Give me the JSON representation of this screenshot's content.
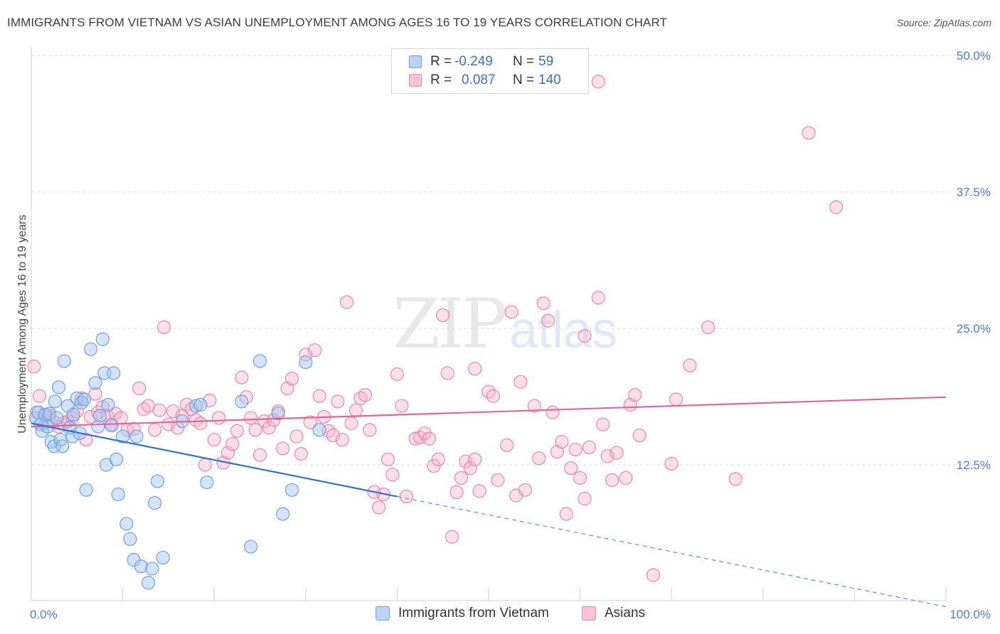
{
  "header": {
    "title": "IMMIGRANTS FROM VIETNAM VS ASIAN UNEMPLOYMENT AMONG AGES 16 TO 19 YEARS CORRELATION CHART",
    "source": "Source: ZipAtlas.com"
  },
  "watermark": {
    "zip": "ZIP",
    "atlas": "atlas"
  },
  "legend": {
    "r_label": "R =",
    "n_label": "N =",
    "series": [
      {
        "name": "Immigrants from Vietnam",
        "r": "-0.249",
        "n": "59",
        "color": "#6ea0e6",
        "fill": "#bcd3f5"
      },
      {
        "name": "Asians",
        "r": "0.087",
        "n": "140",
        "color": "#e986a8",
        "fill": "#f6c4d4"
      }
    ]
  },
  "chart_data": {
    "type": "scatter",
    "title": "IMMIGRANTS FROM VIETNAM VS ASIAN UNEMPLOYMENT AMONG AGES 16 TO 19 YEARS CORRELATION CHART",
    "xlabel": "",
    "ylabel": "Unemployment Among Ages 16 to 19 years",
    "xlim": [
      0,
      100
    ],
    "ylim": [
      0,
      50
    ],
    "x_tick_labels": [
      "0.0%",
      "100.0%"
    ],
    "y_ticks": [
      12.5,
      25.0,
      37.5,
      50.0
    ],
    "y_tick_labels": [
      "12.5%",
      "25.0%",
      "37.5%",
      "50.0%"
    ],
    "grid": "horizontal dashed",
    "series": [
      {
        "name": "Immigrants from Vietnam",
        "color": "#6ea0e6",
        "trend": {
          "x0": 0,
          "y0": 16.3,
          "x1": 40,
          "y1": 9.6,
          "dashed_to_x": 100,
          "dashed_to_y": -0.5
        },
        "points": [
          [
            0.5,
            16.8
          ],
          [
            0.8,
            17.3
          ],
          [
            1.0,
            16.2
          ],
          [
            1.2,
            15.6
          ],
          [
            1.5,
            17.1
          ],
          [
            1.8,
            16.0
          ],
          [
            2.0,
            17.2
          ],
          [
            2.2,
            14.6
          ],
          [
            2.5,
            14.2
          ],
          [
            2.6,
            18.3
          ],
          [
            2.8,
            16.8
          ],
          [
            3.0,
            19.6
          ],
          [
            3.2,
            14.8
          ],
          [
            3.4,
            14.2
          ],
          [
            3.6,
            22.0
          ],
          [
            4.0,
            17.9
          ],
          [
            4.2,
            15.9
          ],
          [
            4.5,
            15.1
          ],
          [
            4.6,
            17.1
          ],
          [
            5.0,
            18.6
          ],
          [
            5.3,
            15.4
          ],
          [
            5.5,
            18.2
          ],
          [
            5.8,
            18.5
          ],
          [
            6.0,
            10.2
          ],
          [
            6.5,
            23.1
          ],
          [
            7.0,
            20.0
          ],
          [
            7.3,
            16.0
          ],
          [
            7.5,
            17.0
          ],
          [
            7.8,
            24.0
          ],
          [
            8.0,
            20.9
          ],
          [
            8.2,
            12.5
          ],
          [
            8.4,
            18.0
          ],
          [
            8.8,
            16.1
          ],
          [
            9.0,
            20.9
          ],
          [
            9.3,
            13.0
          ],
          [
            9.5,
            9.8
          ],
          [
            10.0,
            15.1
          ],
          [
            10.4,
            7.1
          ],
          [
            10.8,
            5.7
          ],
          [
            11.2,
            3.8
          ],
          [
            11.5,
            15.1
          ],
          [
            12.0,
            3.2
          ],
          [
            12.8,
            1.7
          ],
          [
            13.2,
            3.0
          ],
          [
            13.5,
            9.0
          ],
          [
            13.8,
            11.0
          ],
          [
            14.4,
            4.0
          ],
          [
            16.5,
            16.5
          ],
          [
            18.0,
            17.9
          ],
          [
            18.5,
            18.0
          ],
          [
            19.2,
            10.9
          ],
          [
            23.0,
            18.3
          ],
          [
            24.0,
            5.0
          ],
          [
            25.0,
            22.0
          ],
          [
            27.0,
            17.2
          ],
          [
            27.5,
            8.0
          ],
          [
            28.5,
            10.2
          ],
          [
            30.0,
            21.9
          ],
          [
            31.5,
            15.7
          ]
        ]
      },
      {
        "name": "Asians",
        "color": "#e986a8",
        "trend": {
          "x0": 0,
          "y0": 16.0,
          "x1": 100,
          "y1": 18.7
        },
        "points": [
          [
            0.3,
            21.5
          ],
          [
            0.6,
            17.3
          ],
          [
            0.9,
            18.8
          ],
          [
            1.2,
            16.3
          ],
          [
            1.6,
            17.1
          ],
          [
            2.0,
            17.0
          ],
          [
            2.4,
            16.5
          ],
          [
            3.0,
            16.0
          ],
          [
            3.5,
            16.3
          ],
          [
            4.0,
            16.5
          ],
          [
            4.5,
            16.8
          ],
          [
            5.0,
            17.4
          ],
          [
            5.5,
            18.6
          ],
          [
            6.0,
            14.8
          ],
          [
            6.5,
            16.9
          ],
          [
            7.0,
            19.0
          ],
          [
            7.3,
            17.3
          ],
          [
            7.8,
            17.8
          ],
          [
            8.3,
            17.0
          ],
          [
            8.7,
            16.2
          ],
          [
            9.2,
            17.2
          ],
          [
            9.8,
            16.8
          ],
          [
            10.5,
            15.7
          ],
          [
            11.2,
            15.8
          ],
          [
            11.8,
            19.5
          ],
          [
            12.3,
            17.6
          ],
          [
            12.8,
            17.9
          ],
          [
            13.5,
            15.7
          ],
          [
            14.0,
            17.5
          ],
          [
            14.5,
            25.1
          ],
          [
            15.0,
            16.2
          ],
          [
            15.5,
            17.4
          ],
          [
            16.0,
            15.9
          ],
          [
            16.5,
            17.0
          ],
          [
            17.0,
            18.0
          ],
          [
            17.5,
            17.6
          ],
          [
            18.0,
            16.6
          ],
          [
            18.5,
            16.3
          ],
          [
            19.0,
            12.5
          ],
          [
            19.5,
            18.4
          ],
          [
            20.0,
            14.8
          ],
          [
            20.5,
            16.8
          ],
          [
            21.0,
            12.7
          ],
          [
            21.5,
            13.6
          ],
          [
            22.0,
            14.4
          ],
          [
            22.5,
            15.6
          ],
          [
            23.0,
            20.5
          ],
          [
            23.5,
            18.7
          ],
          [
            24.0,
            16.8
          ],
          [
            24.5,
            15.7
          ],
          [
            25.0,
            13.4
          ],
          [
            25.5,
            16.5
          ],
          [
            26.0,
            15.9
          ],
          [
            26.5,
            16.6
          ],
          [
            27.0,
            17.4
          ],
          [
            27.5,
            14.0
          ],
          [
            28.0,
            19.5
          ],
          [
            28.5,
            20.4
          ],
          [
            29.0,
            15.1
          ],
          [
            29.5,
            13.5
          ],
          [
            30.0,
            22.6
          ],
          [
            30.5,
            16.4
          ],
          [
            31.0,
            23.0
          ],
          [
            31.5,
            18.8
          ],
          [
            32.0,
            16.9
          ],
          [
            32.5,
            15.6
          ],
          [
            33.0,
            15.2
          ],
          [
            33.5,
            18.3
          ],
          [
            34.0,
            14.8
          ],
          [
            34.5,
            27.4
          ],
          [
            35.0,
            16.3
          ],
          [
            35.5,
            17.5
          ],
          [
            36.0,
            18.6
          ],
          [
            36.5,
            18.9
          ],
          [
            37.0,
            15.7
          ],
          [
            37.5,
            10.0
          ],
          [
            38.0,
            8.6
          ],
          [
            38.5,
            9.8
          ],
          [
            39.0,
            13.0
          ],
          [
            39.5,
            11.6
          ],
          [
            40.0,
            20.8
          ],
          [
            40.5,
            17.9
          ],
          [
            41.0,
            9.6
          ],
          [
            42.0,
            14.9
          ],
          [
            42.5,
            15.0
          ],
          [
            43.0,
            15.4
          ],
          [
            43.5,
            14.9
          ],
          [
            44.0,
            12.4
          ],
          [
            44.5,
            13.0
          ],
          [
            45.0,
            26.2
          ],
          [
            45.5,
            20.9
          ],
          [
            46.0,
            5.9
          ],
          [
            46.5,
            10.0
          ],
          [
            47.0,
            11.3
          ],
          [
            47.5,
            12.8
          ],
          [
            48.0,
            12.2
          ],
          [
            48.5,
            13.0
          ],
          [
            49.0,
            10.1
          ],
          [
            50.0,
            19.2
          ],
          [
            50.5,
            18.8
          ],
          [
            51.0,
            11.1
          ],
          [
            52.0,
            14.3
          ],
          [
            52.5,
            26.5
          ],
          [
            53.0,
            9.7
          ],
          [
            53.5,
            20.1
          ],
          [
            54.0,
            10.2
          ],
          [
            55.0,
            17.9
          ],
          [
            55.5,
            13.1
          ],
          [
            56.0,
            27.3
          ],
          [
            56.5,
            25.7
          ],
          [
            57.0,
            17.3
          ],
          [
            57.5,
            13.7
          ],
          [
            58.0,
            14.6
          ],
          [
            58.5,
            8.0
          ],
          [
            59.0,
            12.2
          ],
          [
            59.5,
            13.9
          ],
          [
            60.0,
            11.3
          ],
          [
            60.5,
            9.4
          ],
          [
            61.0,
            14.1
          ],
          [
            62.0,
            27.8
          ],
          [
            62.5,
            16.2
          ],
          [
            63.0,
            13.3
          ],
          [
            63.5,
            11.1
          ],
          [
            64.0,
            13.6
          ],
          [
            65.0,
            11.3
          ],
          [
            65.5,
            18.0
          ],
          [
            66.0,
            18.9
          ],
          [
            66.5,
            15.2
          ],
          [
            68.0,
            2.4
          ],
          [
            70.0,
            12.6
          ],
          [
            70.5,
            18.5
          ],
          [
            72.0,
            21.6
          ],
          [
            74.0,
            25.1
          ],
          [
            77.0,
            11.2
          ],
          [
            85.0,
            42.9
          ],
          [
            88.0,
            36.1
          ],
          [
            62.0,
            47.6
          ],
          [
            56.5,
            49.3
          ],
          [
            60.5,
            24.3
          ],
          [
            48.5,
            21.3
          ]
        ]
      }
    ]
  }
}
